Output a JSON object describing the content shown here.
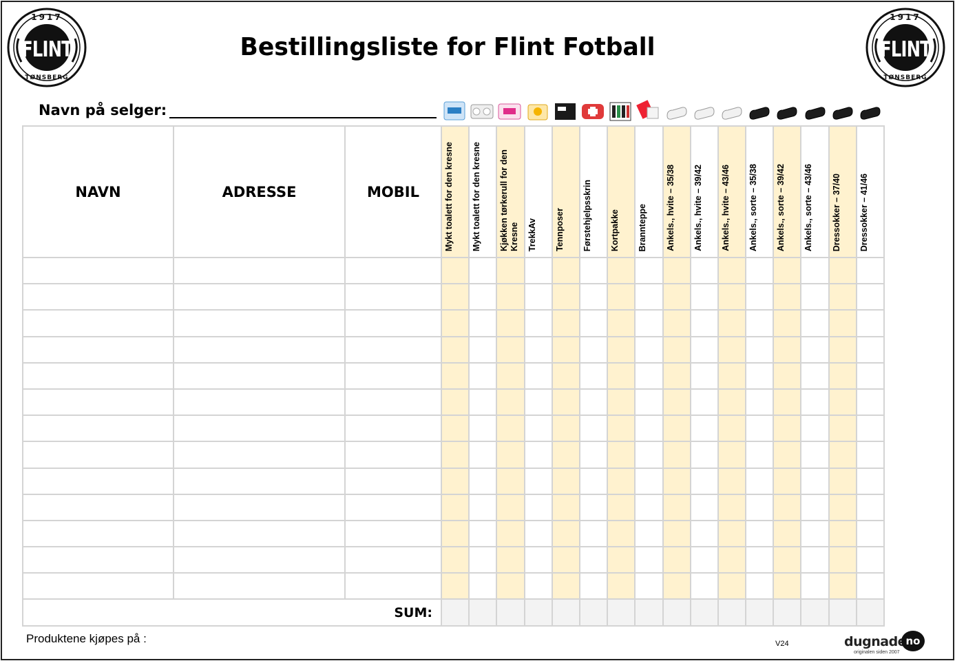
{
  "logo": {
    "year": "1917",
    "name": "FLINT",
    "city": "TØNSBERG"
  },
  "title": "Bestillingsliste for Flint Fotball",
  "seller_label": "Navn på selger:",
  "columns": {
    "name": "NAVN",
    "address": "ADRESSE",
    "mobile": "MOBIL"
  },
  "products": [
    {
      "label": "Mykt toalett for den kresne",
      "icon": "toilet-paper-pack-icon",
      "shaded": true
    },
    {
      "label": "Mykt toalett for den kresne",
      "icon": "toilet-paper-roll-icon",
      "shaded": false
    },
    {
      "label": "Kjøkken tørkerull for den Kresne",
      "icon": "kitchen-roll-icon",
      "shaded": true
    },
    {
      "label": "TrekkAv",
      "icon": "trash-bag-icon",
      "shaded": false
    },
    {
      "label": "Tennposer",
      "icon": "fire-starter-box-icon",
      "shaded": true
    },
    {
      "label": "Førstehjelpsskrin",
      "icon": "first-aid-kit-icon",
      "shaded": false
    },
    {
      "label": "Kortpakke",
      "icon": "card-pack-icon",
      "shaded": true
    },
    {
      "label": "Brannteppe",
      "icon": "fire-blanket-icon",
      "shaded": false
    },
    {
      "label": "Ankels., hvite – 35/38",
      "icon": "white-sock-icon",
      "shaded": true
    },
    {
      "label": "Ankels., hvite – 39/42",
      "icon": "white-sock-icon",
      "shaded": false
    },
    {
      "label": "Ankels., hvite – 43/46",
      "icon": "white-sock-icon",
      "shaded": true
    },
    {
      "label": "Ankels., sorte – 35/38",
      "icon": "black-sock-icon",
      "shaded": false
    },
    {
      "label": "Ankels., sorte – 39/42",
      "icon": "black-sock-icon",
      "shaded": true
    },
    {
      "label": "Ankels., sorte – 43/46",
      "icon": "black-sock-icon",
      "shaded": false
    },
    {
      "label": "Dressokker – 37/40",
      "icon": "black-sock-icon",
      "shaded": true
    },
    {
      "label": "Dressokker – 41/46",
      "icon": "black-sock-icon",
      "shaded": false
    }
  ],
  "empty_rows": 13,
  "sum_label": "SUM:",
  "footer_text": "Produktene kjøpes på :",
  "version": "V24",
  "brand": {
    "name": "dugnaden.",
    "tld": "no",
    "tagline": "originalen siden 2007"
  },
  "colors": {
    "shade": "#fff2cf",
    "sum_bg": "#f3f3f3",
    "grid": "#d4d4d4"
  }
}
